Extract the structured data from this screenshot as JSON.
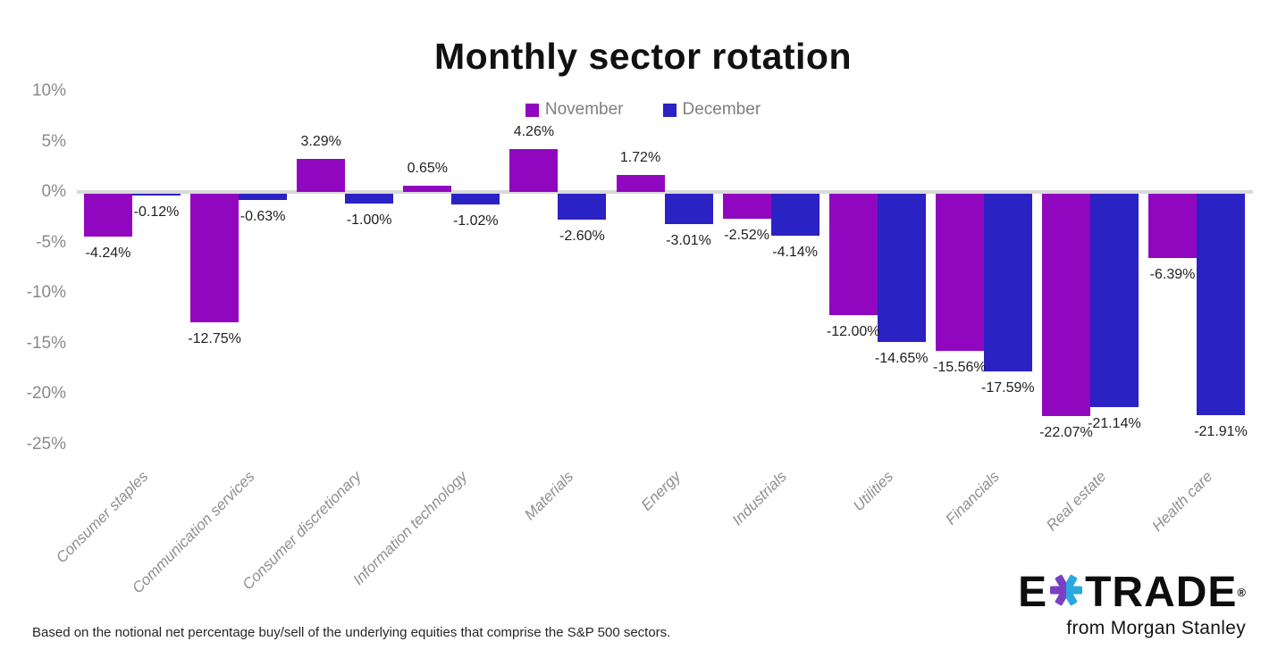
{
  "title": "Monthly sector rotation",
  "footnote": "Based on the notional net percentage buy/sell of the underlying equities that comprise the S&P 500 sectors.",
  "colors": {
    "november": "#9107C0",
    "december": "#2B22C4",
    "zero_line": "#d9d9d9",
    "axis_text": "#8a8a8a",
    "category_text": "#8f8f8f",
    "logo_star_purple": "#7B3FC6",
    "logo_star_cyan": "#2AA7DF"
  },
  "chart_data": {
    "type": "bar",
    "title": "Monthly sector rotation",
    "legend_position": "top",
    "grid": false,
    "categories": [
      "Consumer staples",
      "Communication services",
      "Consumer discretionary",
      "Information technology",
      "Materials",
      "Energy",
      "Industrials",
      "Utilities",
      "Financials",
      "Real estate",
      "Health care"
    ],
    "series": [
      {
        "name": "November",
        "color": "#9107C0",
        "values": [
          -4.24,
          -12.75,
          3.29,
          0.65,
          4.26,
          1.72,
          -2.52,
          -12.0,
          -15.56,
          -22.07,
          -6.39
        ],
        "labels": [
          "-4.24%",
          "-12.75%",
          "3.29%",
          "0.65%",
          "4.26%",
          "1.72%",
          "-2.52%",
          "-12.00%",
          "-15.56%",
          "-22.07%",
          "-6.39%"
        ]
      },
      {
        "name": "December",
        "color": "#2B22C4",
        "values": [
          -0.12,
          -0.63,
          -1.0,
          -1.02,
          -2.6,
          -3.01,
          -4.14,
          -14.65,
          -17.59,
          -21.14,
          -21.91
        ],
        "labels": [
          "-0.12%",
          "-0.63%",
          "-1.00%",
          "-1.02%",
          "-2.60%",
          "-3.01%",
          "-4.14%",
          "-14.65%",
          "-17.59%",
          "-21.14%",
          "-21.91%"
        ]
      }
    ],
    "y_axis": {
      "tick_labels": [
        "10%",
        "5%",
        "0%",
        "-5%",
        "-10%",
        "-15%",
        "-20%",
        "-25%"
      ],
      "tick_values": [
        10,
        5,
        0,
        -5,
        -10,
        -15,
        -20,
        -25
      ],
      "min": -25,
      "max": 10
    }
  },
  "legend": {
    "items": [
      {
        "label": "November",
        "color": "#9107C0"
      },
      {
        "label": "December",
        "color": "#2B22C4"
      }
    ]
  },
  "logo": {
    "brand_left": "E",
    "brand_right": "TRADE",
    "registered": "®",
    "tagline": "from Morgan Stanley"
  }
}
